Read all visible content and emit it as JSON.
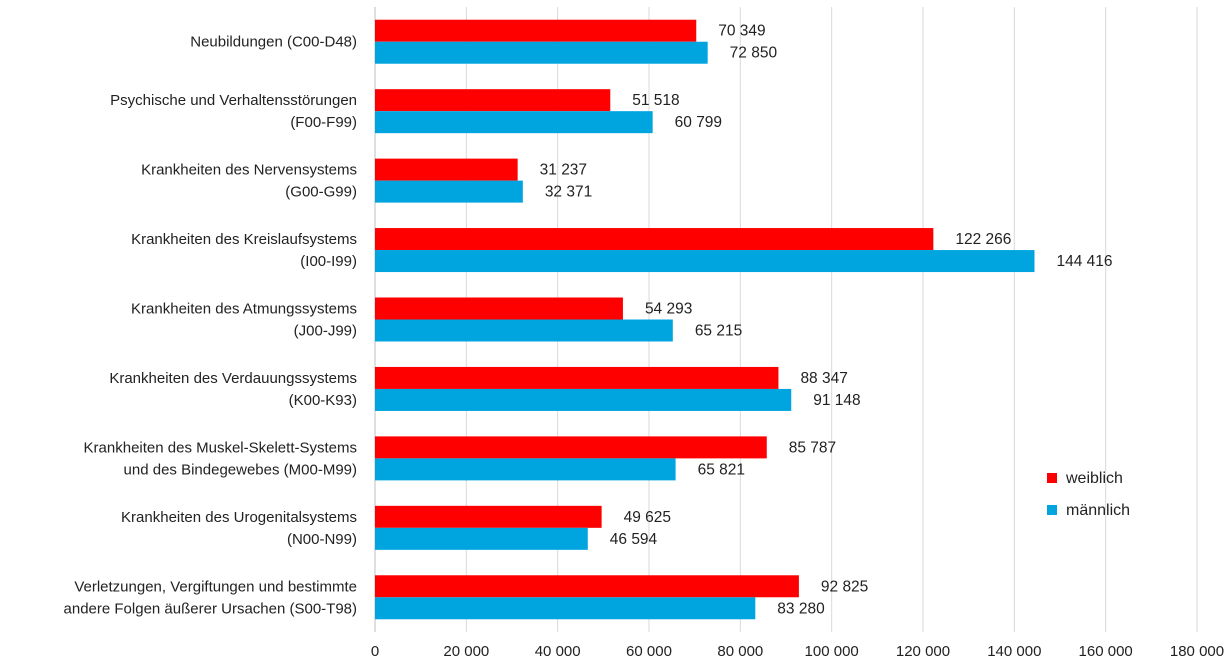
{
  "chart_data": {
    "type": "bar",
    "orientation": "horizontal",
    "categories": [
      [
        "Neubildungen (C00-D48)"
      ],
      [
        "Psychische und Verhaltensstörungen",
        "(F00-F99)"
      ],
      [
        "Krankheiten des Nervensystems",
        "(G00-G99)"
      ],
      [
        "Krankheiten des Kreislaufsystems",
        "(I00-I99)"
      ],
      [
        "Krankheiten des Atmungssystems",
        "(J00-J99)"
      ],
      [
        "Krankheiten des Verdauungssystems",
        "(K00-K93)"
      ],
      [
        "Krankheiten des Muskel-Skelett-Systems",
        "und des Bindegewebes (M00-M99)"
      ],
      [
        "Krankheiten des Urogenitalsystems",
        "(N00-N99)"
      ],
      [
        "Verletzungen, Vergiftungen und bestimmte",
        "andere Folgen äußerer Ursachen (S00-T98)"
      ]
    ],
    "series": [
      {
        "name": "weiblich",
        "color": "#ff0000",
        "values": [
          70349,
          51518,
          31237,
          122266,
          54293,
          88347,
          85787,
          49625,
          92825
        ],
        "labels": [
          "70 349",
          "51 518",
          "31 237",
          "122 266",
          "54 293",
          "88 347",
          "85 787",
          "49 625",
          "92 825"
        ]
      },
      {
        "name": "männlich",
        "color": "#00a5e0",
        "values": [
          72850,
          60799,
          32371,
          144416,
          65215,
          91148,
          65821,
          46594,
          83280
        ],
        "labels": [
          "72 850",
          "60 799",
          "32 371",
          "144 416",
          "65 215",
          "91 148",
          "65 821",
          "46 594",
          "83 280"
        ]
      }
    ],
    "x_ticks": [
      "0",
      "20 000",
      "40 000",
      "60 000",
      "80 000",
      "100 000",
      "120 000",
      "140 000",
      "160 000",
      "180 000"
    ],
    "xlim": [
      0,
      180000
    ],
    "grid": true,
    "legend": "right"
  }
}
